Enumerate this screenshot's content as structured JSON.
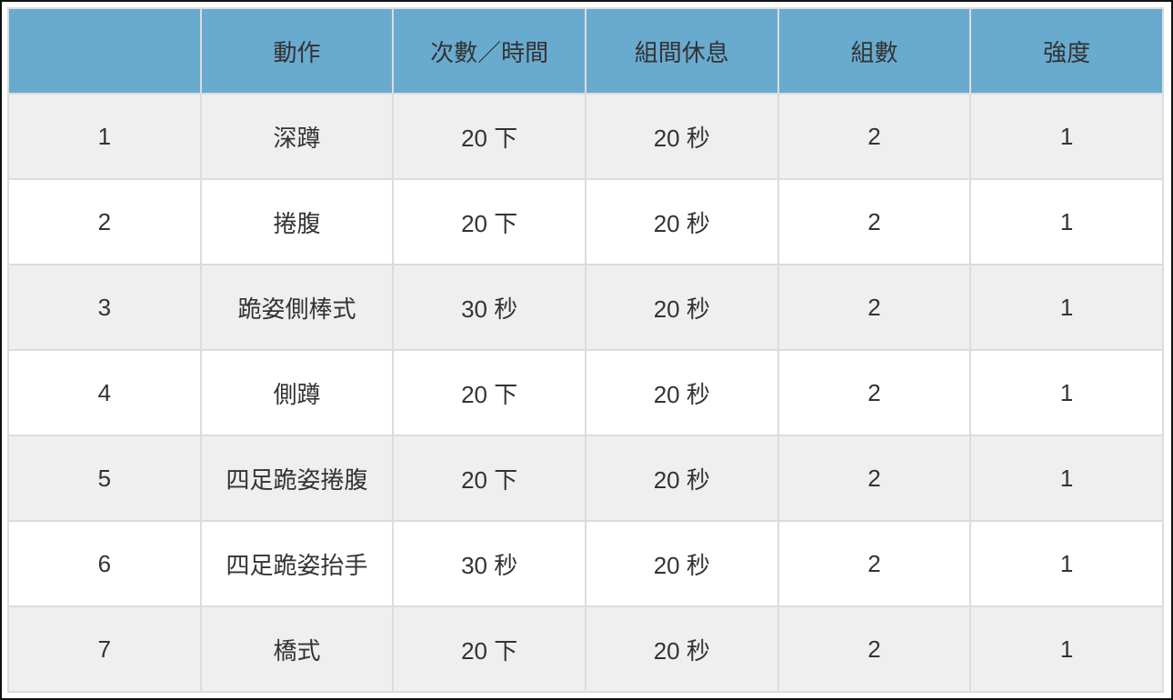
{
  "colors": {
    "header_bg": "#69aacf",
    "odd_row_bg": "#efefef",
    "even_row_bg": "#ffffff",
    "text": "#333333"
  },
  "table": {
    "headers": [
      "",
      "動作",
      "次數／時間",
      "組間休息",
      "組數",
      "強度"
    ],
    "rows": [
      [
        "1",
        "深蹲",
        "20 下",
        "20 秒",
        "2",
        "1"
      ],
      [
        "2",
        "捲腹",
        "20 下",
        "20 秒",
        "2",
        "1"
      ],
      [
        "3",
        "跪姿側棒式",
        "30 秒",
        "20 秒",
        "2",
        "1"
      ],
      [
        "4",
        "側蹲",
        "20 下",
        "20 秒",
        "2",
        "1"
      ],
      [
        "5",
        "四足跪姿捲腹",
        "20 下",
        "20 秒",
        "2",
        "1"
      ],
      [
        "6",
        "四足跪姿抬手",
        "30 秒",
        "20 秒",
        "2",
        "1"
      ],
      [
        "7",
        "橋式",
        "20 下",
        "20 秒",
        "2",
        "1"
      ]
    ]
  }
}
